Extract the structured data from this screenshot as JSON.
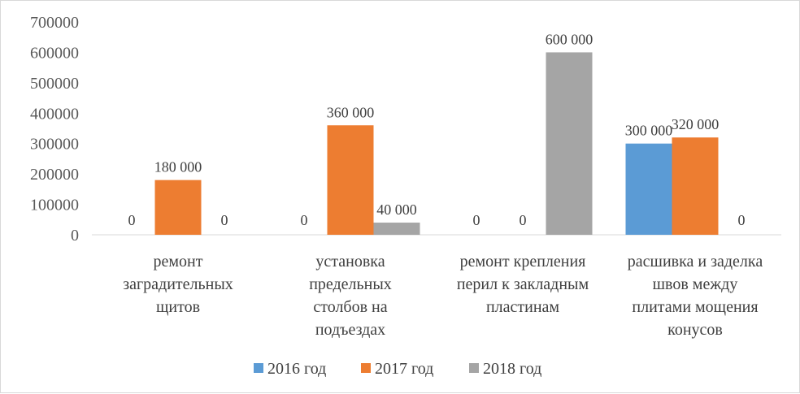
{
  "chart_data": {
    "type": "bar",
    "title": "",
    "xlabel": "",
    "ylabel": "",
    "ylim": [
      0,
      700000
    ],
    "yticks": [
      0,
      100000,
      200000,
      300000,
      400000,
      500000,
      600000,
      700000
    ],
    "ytick_labels": [
      "0",
      "100000",
      "200000",
      "300000",
      "400000",
      "500000",
      "600000",
      "700000"
    ],
    "grid": false,
    "legend_position": "bottom",
    "categories": [
      [
        "ремонт",
        "заградительных",
        "щитов"
      ],
      [
        "установка",
        "предельных",
        "столбов на",
        "подъездах"
      ],
      [
        "ремонт крепления",
        "перил к закладным",
        "пластинам"
      ],
      [
        "расшивка и заделка",
        "швов между",
        "плитами мощения",
        "конусов"
      ]
    ],
    "series": [
      {
        "name": "2016 год",
        "color": "#5b9bd5",
        "values": [
          0,
          0,
          0,
          300000
        ],
        "labels": [
          "0",
          "0",
          "0",
          "300 000"
        ]
      },
      {
        "name": "2017 год",
        "color": "#ed7d31",
        "values": [
          180000,
          360000,
          0,
          320000
        ],
        "labels": [
          "180 000",
          "360 000",
          "0",
          "320 000"
        ]
      },
      {
        "name": "2018 год",
        "color": "#a5a5a5",
        "values": [
          0,
          40000,
          600000,
          0
        ],
        "labels": [
          "0",
          "40 000",
          "600 000",
          "0"
        ]
      }
    ]
  }
}
